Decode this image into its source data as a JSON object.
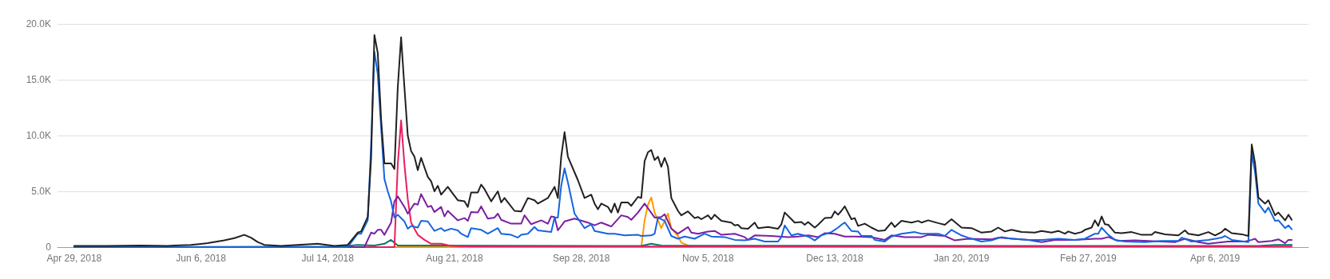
{
  "chart_data": {
    "type": "line",
    "xlim": [
      "2018-04-24",
      "2019-05-04"
    ],
    "xticks": [
      {
        "value": "2018-04-29",
        "label": "Apr 29, 2018"
      },
      {
        "value": "2018-06-06",
        "label": "Jun 6, 2018"
      },
      {
        "value": "2018-07-14",
        "label": "Jul 14, 2018"
      },
      {
        "value": "2018-08-21",
        "label": "Aug 21, 2018"
      },
      {
        "value": "2018-09-28",
        "label": "Sep 28, 2018"
      },
      {
        "value": "2018-11-05",
        "label": "Nov 5, 2018"
      },
      {
        "value": "2018-12-13",
        "label": "Dec 13, 2018"
      },
      {
        "value": "2019-01-20",
        "label": "Jan 20, 2019"
      },
      {
        "value": "2019-02-27",
        "label": "Feb 27, 2019"
      },
      {
        "value": "2019-04-06",
        "label": "Apr 6, 2019"
      }
    ],
    "ylim": [
      0,
      20000
    ],
    "yticks": [
      0,
      {
        "value": 5000,
        "label": "5.0K"
      },
      {
        "value": 10000,
        "label": "10.0K"
      },
      {
        "value": 15000,
        "label": "15.0K"
      },
      {
        "value": 20000,
        "label": "20.0K"
      }
    ],
    "grid": "y",
    "marker": "none",
    "line_style": "solid",
    "series": [
      {
        "color": "#ff9800",
        "x": [
          "2018-04-29",
          "2018-10-16",
          "2018-10-17",
          "2018-10-18",
          "2018-10-19",
          "2018-10-20",
          "2018-10-22",
          "2018-10-24",
          "2018-10-25",
          "2018-10-27",
          "2018-10-28",
          "2018-10-30",
          "2018-11-01",
          "2019-04-29"
        ],
        "values": [
          0,
          0,
          2400,
          3800,
          4450,
          3100,
          1700,
          3000,
          1700,
          1000,
          400,
          150,
          0,
          0
        ]
      },
      {
        "color": "#00796b",
        "x": [
          "2018-04-29",
          "2018-07-18",
          "2018-07-23",
          "2018-07-28",
          "2018-07-31",
          "2018-08-02",
          "2018-08-04",
          "2018-10-16",
          "2018-10-19",
          "2018-10-22",
          "2019-02-23",
          "2019-04-19",
          "2019-04-24",
          "2019-04-29"
        ],
        "values": [
          0,
          50,
          200,
          150,
          300,
          650,
          150,
          100,
          300,
          150,
          100,
          100,
          200,
          200
        ]
      },
      {
        "color": "#e91e63",
        "x": [
          "2018-04-29",
          "2018-08-03",
          "2018-08-04",
          "2018-08-05",
          "2018-08-06",
          "2018-08-07",
          "2018-08-08",
          "2018-08-10",
          "2018-08-12",
          "2018-08-14",
          "2018-08-17",
          "2018-08-20",
          "2018-08-27",
          "2019-04-29"
        ],
        "values": [
          0,
          0,
          7400,
          11350,
          7400,
          4300,
          2200,
          1100,
          650,
          300,
          300,
          100,
          50,
          50
        ]
      },
      {
        "color": "#7b1fa2",
        "x": [
          "2018-04-29",
          "2018-07-25",
          "2018-07-27",
          "2018-07-28",
          "2018-07-29",
          "2018-07-30",
          "2018-07-31",
          "2018-08-02",
          "2018-08-03",
          "2018-08-04",
          "2018-08-06",
          "2018-08-07",
          "2018-08-09",
          "2018-08-10",
          "2018-08-11",
          "2018-08-13",
          "2018-08-14",
          "2018-08-15",
          "2018-08-17",
          "2018-08-18",
          "2018-08-19",
          "2018-08-22",
          "2018-08-24",
          "2018-08-25",
          "2018-08-26",
          "2018-08-28",
          "2018-08-29",
          "2018-08-31",
          "2018-09-02",
          "2018-09-03",
          "2018-09-04",
          "2018-09-07",
          "2018-09-10",
          "2018-09-11",
          "2018-09-13",
          "2018-09-16",
          "2018-09-18",
          "2018-09-19",
          "2018-09-20",
          "2018-09-21",
          "2018-09-23",
          "2018-09-26",
          "2018-09-30",
          "2018-10-02",
          "2018-10-04",
          "2018-10-07",
          "2018-10-10",
          "2018-10-12",
          "2018-10-13",
          "2018-10-15",
          "2018-10-17",
          "2018-10-20",
          "2018-10-22",
          "2018-10-23",
          "2018-10-25",
          "2018-10-27",
          "2018-10-30",
          "2018-10-31",
          "2018-11-02",
          "2018-11-05",
          "2018-11-07",
          "2018-11-09",
          "2018-11-13",
          "2018-11-16",
          "2018-11-17",
          "2018-11-19",
          "2018-11-24",
          "2018-11-29",
          "2018-12-02",
          "2018-12-05",
          "2018-12-08",
          "2018-12-10",
          "2018-12-13",
          "2018-12-16",
          "2018-12-19",
          "2018-12-24",
          "2018-12-28",
          "2018-12-30",
          "2019-01-03",
          "2019-01-08",
          "2019-01-10",
          "2019-01-15",
          "2019-01-18",
          "2019-01-22",
          "2019-01-29",
          "2019-01-31",
          "2019-02-09",
          "2019-02-13",
          "2019-02-17",
          "2019-02-23",
          "2019-03-01",
          "2019-03-03",
          "2019-03-05",
          "2019-03-08",
          "2019-03-13",
          "2019-03-21",
          "2019-03-25",
          "2019-03-28",
          "2019-04-01",
          "2019-04-04",
          "2019-04-10",
          "2019-04-15",
          "2019-04-17",
          "2019-04-18",
          "2019-04-19",
          "2019-04-23",
          "2019-04-25",
          "2019-04-27",
          "2019-04-28",
          "2019-04-29"
        ],
        "values": [
          0,
          0,
          1300,
          1200,
          1550,
          1550,
          1100,
          2200,
          4100,
          4550,
          3600,
          3000,
          3900,
          3800,
          4750,
          3600,
          3700,
          3150,
          3600,
          2750,
          3250,
          2400,
          2600,
          2350,
          3150,
          3100,
          3650,
          2550,
          2650,
          3000,
          2450,
          2100,
          2100,
          2850,
          2050,
          2400,
          2100,
          2750,
          2700,
          1500,
          2300,
          2550,
          2200,
          1950,
          2200,
          1850,
          2850,
          2700,
          2450,
          3100,
          3900,
          2650,
          2700,
          2950,
          1650,
          1200,
          1800,
          1300,
          1200,
          1400,
          1450,
          1100,
          1200,
          900,
          650,
          1050,
          1000,
          900,
          950,
          1050,
          900,
          1250,
          1200,
          950,
          950,
          900,
          650,
          1050,
          900,
          900,
          1100,
          1000,
          600,
          750,
          700,
          850,
          650,
          450,
          650,
          650,
          750,
          750,
          900,
          550,
          600,
          500,
          450,
          750,
          450,
          300,
          500,
          500,
          650,
          750,
          450,
          550,
          700,
          350,
          650,
          650
        ]
      },
      {
        "color": "#1565e0",
        "x": [
          "2018-04-29",
          "2018-07-20",
          "2018-07-23",
          "2018-07-24",
          "2018-07-26",
          "2018-07-27",
          "2018-07-28",
          "2018-07-29",
          "2018-07-30",
          "2018-07-31",
          "2018-08-01",
          "2018-08-02",
          "2018-08-03",
          "2018-08-04",
          "2018-08-06",
          "2018-08-07",
          "2018-08-08",
          "2018-08-10",
          "2018-08-11",
          "2018-08-13",
          "2018-08-15",
          "2018-08-17",
          "2018-08-18",
          "2018-08-20",
          "2018-08-22",
          "2018-08-23",
          "2018-08-25",
          "2018-08-26",
          "2018-08-29",
          "2018-08-31",
          "2018-09-03",
          "2018-09-04",
          "2018-09-07",
          "2018-09-09",
          "2018-09-10",
          "2018-09-12",
          "2018-09-14",
          "2018-09-15",
          "2018-09-19",
          "2018-09-20",
          "2018-09-21",
          "2018-09-22",
          "2018-09-23",
          "2018-09-24",
          "2018-09-26",
          "2018-09-29",
          "2018-10-01",
          "2018-10-02",
          "2018-10-06",
          "2018-10-08",
          "2018-10-11",
          "2018-10-15",
          "2018-10-16",
          "2018-10-19",
          "2018-10-20",
          "2018-10-21",
          "2018-10-23",
          "2018-10-25",
          "2018-10-27",
          "2018-10-29",
          "2018-11-01",
          "2018-11-04",
          "2018-11-06",
          "2018-11-10",
          "2018-11-13",
          "2018-11-16",
          "2018-11-19",
          "2018-11-22",
          "2018-11-26",
          "2018-11-27",
          "2018-11-28",
          "2018-11-30",
          "2018-12-02",
          "2018-12-05",
          "2018-12-07",
          "2018-12-09",
          "2018-12-12",
          "2018-12-14",
          "2018-12-15",
          "2018-12-16",
          "2018-12-18",
          "2018-12-20",
          "2018-12-21",
          "2018-12-24",
          "2018-12-25",
          "2018-12-28",
          "2018-12-30",
          "2019-01-02",
          "2019-01-06",
          "2019-01-08",
          "2019-01-13",
          "2019-01-15",
          "2019-01-17",
          "2019-01-20",
          "2019-01-22",
          "2019-01-26",
          "2019-01-29",
          "2019-02-01",
          "2019-02-04",
          "2019-02-09",
          "2019-02-13",
          "2019-02-18",
          "2019-02-23",
          "2019-02-26",
          "2019-03-01",
          "2019-03-02",
          "2019-03-03",
          "2019-03-05",
          "2019-03-07",
          "2019-03-10",
          "2019-03-16",
          "2019-03-21",
          "2019-03-26",
          "2019-03-27",
          "2019-03-30",
          "2019-04-04",
          "2019-04-08",
          "2019-04-09",
          "2019-04-11",
          "2019-04-16",
          "2019-04-17",
          "2019-04-18",
          "2019-04-19",
          "2019-04-21",
          "2019-04-22",
          "2019-04-24",
          "2019-04-25",
          "2019-04-27",
          "2019-04-28",
          "2019-04-29"
        ],
        "values": [
          0,
          0,
          1200,
          1200,
          2400,
          9100,
          17500,
          15500,
          10750,
          6100,
          5000,
          4100,
          2650,
          2900,
          2300,
          1650,
          1900,
          1750,
          2350,
          2300,
          1450,
          1700,
          1450,
          1650,
          1500,
          1200,
          900,
          1700,
          1550,
          1200,
          1700,
          1200,
          1100,
          850,
          1100,
          1200,
          1800,
          1500,
          1350,
          2650,
          2650,
          5500,
          7050,
          5800,
          3000,
          1700,
          2050,
          1450,
          1200,
          1200,
          1050,
          1100,
          1000,
          1050,
          1200,
          2650,
          2350,
          1000,
          750,
          950,
          750,
          1200,
          950,
          900,
          650,
          600,
          750,
          500,
          500,
          900,
          1950,
          1050,
          1200,
          950,
          600,
          1050,
          1350,
          1750,
          2000,
          2200,
          1450,
          1400,
          1000,
          1000,
          650,
          500,
          950,
          1200,
          1350,
          1200,
          1200,
          1000,
          1550,
          1050,
          850,
          500,
          600,
          900,
          750,
          650,
          650,
          750,
          650,
          750,
          1200,
          1200,
          1750,
          1100,
          650,
          500,
          450,
          550,
          550,
          850,
          500,
          650,
          850,
          1000,
          650,
          450,
          8500,
          6700,
          3900,
          3100,
          3550,
          2350,
          2400,
          1700,
          1950,
          1600
        ]
      },
      {
        "color": "#212121",
        "x": [
          "2018-04-29",
          "2018-05-09",
          "2018-05-19",
          "2018-05-27",
          "2018-05-29",
          "2018-06-03",
          "2018-06-08",
          "2018-06-13",
          "2018-06-16",
          "2018-06-19",
          "2018-06-21",
          "2018-06-23",
          "2018-06-25",
          "2018-06-30",
          "2018-07-05",
          "2018-07-11",
          "2018-07-16",
          "2018-07-20",
          "2018-07-23",
          "2018-07-24",
          "2018-07-26",
          "2018-07-27",
          "2018-07-28",
          "2018-07-29",
          "2018-07-30",
          "2018-07-31",
          "2018-08-02",
          "2018-08-03",
          "2018-08-04",
          "2018-08-05",
          "2018-08-06",
          "2018-08-07",
          "2018-08-08",
          "2018-08-09",
          "2018-08-10",
          "2018-08-11",
          "2018-08-13",
          "2018-08-14",
          "2018-08-15",
          "2018-08-16",
          "2018-08-17",
          "2018-08-19",
          "2018-08-21",
          "2018-08-22",
          "2018-08-24",
          "2018-08-25",
          "2018-08-26",
          "2018-08-28",
          "2018-08-29",
          "2018-08-30",
          "2018-09-01",
          "2018-09-03",
          "2018-09-04",
          "2018-09-05",
          "2018-09-08",
          "2018-09-10",
          "2018-09-12",
          "2018-09-14",
          "2018-09-15",
          "2018-09-18",
          "2018-09-20",
          "2018-09-21",
          "2018-09-22",
          "2018-09-23",
          "2018-09-24",
          "2018-09-27",
          "2018-09-29",
          "2018-10-01",
          "2018-10-02",
          "2018-10-03",
          "2018-10-04",
          "2018-10-06",
          "2018-10-07",
          "2018-10-08",
          "2018-10-09",
          "2018-10-10",
          "2018-10-12",
          "2018-10-13",
          "2018-10-15",
          "2018-10-16",
          "2018-10-17",
          "2018-10-18",
          "2018-10-19",
          "2018-10-20",
          "2018-10-21",
          "2018-10-22",
          "2018-10-23",
          "2018-10-24",
          "2018-10-25",
          "2018-10-27",
          "2018-10-28",
          "2018-10-30",
          "2018-11-01",
          "2018-11-02",
          "2018-11-03",
          "2018-11-05",
          "2018-11-06",
          "2018-11-07",
          "2018-11-09",
          "2018-11-12",
          "2018-11-13",
          "2018-11-14",
          "2018-11-15",
          "2018-11-17",
          "2018-11-19",
          "2018-11-20",
          "2018-11-23",
          "2018-11-26",
          "2018-11-27",
          "2018-11-28",
          "2018-11-30",
          "2018-12-01",
          "2018-12-03",
          "2018-12-04",
          "2018-12-05",
          "2018-12-07",
          "2018-12-08",
          "2018-12-10",
          "2018-12-12",
          "2018-12-13",
          "2018-12-14",
          "2018-12-15",
          "2018-12-16",
          "2018-12-18",
          "2018-12-19",
          "2018-12-20",
          "2018-12-22",
          "2018-12-24",
          "2018-12-26",
          "2018-12-28",
          "2018-12-30",
          "2018-12-31",
          "2019-01-02",
          "2019-01-05",
          "2019-01-07",
          "2019-01-08",
          "2019-01-10",
          "2019-01-13",
          "2019-01-15",
          "2019-01-17",
          "2019-01-20",
          "2019-01-23",
          "2019-01-26",
          "2019-01-29",
          "2019-01-31",
          "2019-02-02",
          "2019-02-04",
          "2019-02-07",
          "2019-02-11",
          "2019-02-13",
          "2019-02-16",
          "2019-02-18",
          "2019-02-20",
          "2019-02-21",
          "2019-02-23",
          "2019-02-25",
          "2019-02-26",
          "2019-02-28",
          "2019-03-01",
          "2019-03-02",
          "2019-03-03",
          "2019-03-04",
          "2019-03-05",
          "2019-03-07",
          "2019-03-09",
          "2019-03-12",
          "2019-03-15",
          "2019-03-18",
          "2019-03-19",
          "2019-03-22",
          "2019-03-26",
          "2019-03-28",
          "2019-03-29",
          "2019-04-01",
          "2019-04-04",
          "2019-04-06",
          "2019-04-08",
          "2019-04-09",
          "2019-04-11",
          "2019-04-14",
          "2019-04-16",
          "2019-04-17",
          "2019-04-18",
          "2019-04-19",
          "2019-04-21",
          "2019-04-22",
          "2019-04-24",
          "2019-04-25",
          "2019-04-27",
          "2019-04-28",
          "2019-04-29"
        ],
        "values": [
          100,
          100,
          150,
          100,
          150,
          200,
          350,
          600,
          800,
          1100,
          850,
          450,
          200,
          100,
          200,
          300,
          100,
          200,
          1300,
          1400,
          2700,
          7900,
          19000,
          17400,
          11500,
          7500,
          7500,
          7000,
          14300,
          18800,
          14300,
          10000,
          8600,
          8100,
          6900,
          8000,
          6300,
          5900,
          5000,
          5500,
          4700,
          5400,
          4600,
          4200,
          4100,
          3600,
          4900,
          4900,
          5600,
          5200,
          4100,
          5000,
          4000,
          4400,
          3250,
          3200,
          4400,
          4200,
          3900,
          4400,
          5400,
          4400,
          8100,
          10300,
          8100,
          6000,
          4400,
          4700,
          3900,
          3400,
          3900,
          3600,
          3100,
          3900,
          3100,
          4000,
          4000,
          3700,
          4500,
          4400,
          7700,
          8500,
          8700,
          7800,
          8100,
          7200,
          8000,
          7200,
          4400,
          3250,
          2850,
          3200,
          2600,
          2700,
          2500,
          2850,
          2500,
          2900,
          2350,
          2200,
          1950,
          2000,
          1700,
          1650,
          2200,
          1700,
          1800,
          1650,
          2050,
          3100,
          2500,
          2200,
          2250,
          2000,
          2250,
          1750,
          2000,
          2600,
          2650,
          3200,
          2900,
          3250,
          3650,
          2500,
          2600,
          1900,
          2100,
          1750,
          1450,
          1500,
          2200,
          1800,
          2350,
          2200,
          2350,
          2200,
          2400,
          2150,
          2000,
          2500,
          1750,
          1700,
          1300,
          1400,
          1750,
          1400,
          1550,
          1350,
          1300,
          1450,
          1300,
          1450,
          1200,
          1400,
          1200,
          1350,
          1550,
          1750,
          2400,
          1900,
          2750,
          2050,
          2000,
          1300,
          1250,
          1350,
          1100,
          1100,
          1350,
          1150,
          1050,
          1500,
          1200,
          1050,
          1350,
          1050,
          1350,
          1650,
          1250,
          1150,
          1000,
          9200,
          7500,
          4450,
          3900,
          4200,
          2850,
          3100,
          2400,
          2900,
          2450
        ]
      }
    ]
  }
}
